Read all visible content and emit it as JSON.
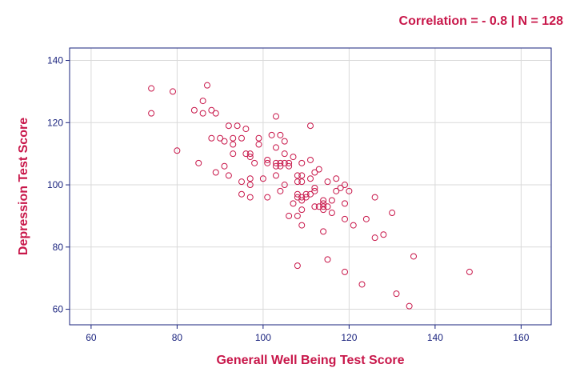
{
  "chart_data": {
    "type": "scatter",
    "title": "Correlation = - 0.8 | N = 128",
    "xlabel": "Generall Well Being Test Score",
    "ylabel": "Depression Test Score",
    "xlim": [
      55,
      167
    ],
    "ylim": [
      55,
      144
    ],
    "xticks": [
      60,
      80,
      100,
      120,
      140,
      160
    ],
    "yticks": [
      60,
      80,
      100,
      120,
      140
    ],
    "grid": true,
    "colors": {
      "text": "#c8174a",
      "points": "#c8174a",
      "axis": "#1a237e",
      "grid": "#d9d9d9",
      "tick_text": "#1a237e"
    },
    "points": [
      [
        74,
        131
      ],
      [
        74,
        123
      ],
      [
        79,
        130
      ],
      [
        80,
        111
      ],
      [
        84,
        124
      ],
      [
        85,
        107
      ],
      [
        86,
        127
      ],
      [
        86,
        123
      ],
      [
        87,
        132
      ],
      [
        88,
        124
      ],
      [
        88,
        115
      ],
      [
        89,
        123
      ],
      [
        89,
        104
      ],
      [
        90,
        115
      ],
      [
        91,
        114
      ],
      [
        91,
        106
      ],
      [
        92,
        119
      ],
      [
        92,
        103
      ],
      [
        93,
        115
      ],
      [
        93,
        113
      ],
      [
        93,
        110
      ],
      [
        94,
        119
      ],
      [
        95,
        115
      ],
      [
        95,
        101
      ],
      [
        95,
        97
      ],
      [
        96,
        118
      ],
      [
        96,
        110
      ],
      [
        97,
        110
      ],
      [
        97,
        109
      ],
      [
        97,
        102
      ],
      [
        97,
        100
      ],
      [
        97,
        96
      ],
      [
        98,
        107
      ],
      [
        99,
        115
      ],
      [
        99,
        113
      ],
      [
        100,
        102
      ],
      [
        101,
        108
      ],
      [
        101,
        107
      ],
      [
        101,
        96
      ],
      [
        102,
        116
      ],
      [
        103,
        122
      ],
      [
        103,
        112
      ],
      [
        103,
        107
      ],
      [
        103,
        106
      ],
      [
        103,
        103
      ],
      [
        104,
        116
      ],
      [
        104,
        107
      ],
      [
        104,
        106
      ],
      [
        104,
        98
      ],
      [
        105,
        114
      ],
      [
        105,
        110
      ],
      [
        105,
        107
      ],
      [
        105,
        100
      ],
      [
        106,
        107
      ],
      [
        106,
        106
      ],
      [
        106,
        90
      ],
      [
        107,
        109
      ],
      [
        107,
        94
      ],
      [
        108,
        103
      ],
      [
        108,
        101
      ],
      [
        108,
        97
      ],
      [
        108,
        96
      ],
      [
        108,
        90
      ],
      [
        108,
        74
      ],
      [
        109,
        107
      ],
      [
        109,
        103
      ],
      [
        109,
        101
      ],
      [
        109,
        96
      ],
      [
        109,
        95
      ],
      [
        109,
        92
      ],
      [
        109,
        87
      ],
      [
        110,
        97
      ],
      [
        110,
        96
      ],
      [
        111,
        119
      ],
      [
        111,
        108
      ],
      [
        111,
        102
      ],
      [
        111,
        97
      ],
      [
        112,
        104
      ],
      [
        112,
        99
      ],
      [
        112,
        98
      ],
      [
        112,
        93
      ],
      [
        113,
        105
      ],
      [
        113,
        93
      ],
      [
        114,
        95
      ],
      [
        114,
        94
      ],
      [
        114,
        93
      ],
      [
        114,
        92
      ],
      [
        114,
        85
      ],
      [
        115,
        101
      ],
      [
        115,
        93
      ],
      [
        115,
        76
      ],
      [
        116,
        95
      ],
      [
        116,
        91
      ],
      [
        117,
        102
      ],
      [
        117,
        98
      ],
      [
        118,
        99
      ],
      [
        119,
        100
      ],
      [
        119,
        94
      ],
      [
        119,
        89
      ],
      [
        119,
        72
      ],
      [
        120,
        98
      ],
      [
        121,
        87
      ],
      [
        123,
        68
      ],
      [
        124,
        89
      ],
      [
        126,
        96
      ],
      [
        126,
        83
      ],
      [
        128,
        84
      ],
      [
        130,
        91
      ],
      [
        131,
        65
      ],
      [
        134,
        61
      ],
      [
        135,
        77
      ],
      [
        148,
        72
      ]
    ]
  }
}
